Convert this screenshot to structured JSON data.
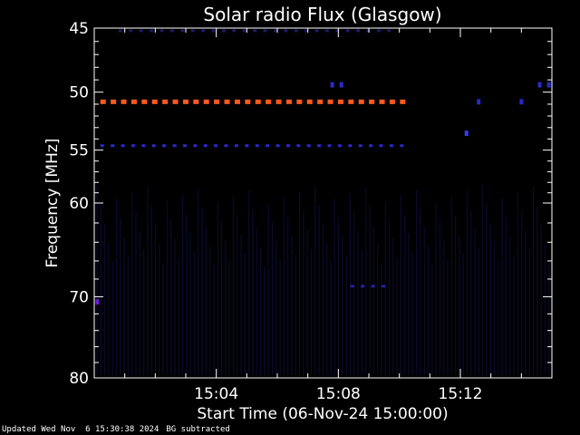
{
  "chart_data": {
    "type": "heatmap",
    "title": "Solar radio Flux (Glasgow)",
    "xlabel": "Start Time (06-Nov-24 15:00:00)",
    "ylabel": "Frequency [MHz]",
    "xlim_minutes": [
      0,
      15.0
    ],
    "ylim_mhz": [
      45,
      80
    ],
    "y_scale": "log",
    "x_ticks": [
      {
        "minute": 4,
        "label": "15:04"
      },
      {
        "minute": 8,
        "label": "15:08"
      },
      {
        "minute": 12,
        "label": "15:12"
      }
    ],
    "y_ticks": [
      {
        "value": 45,
        "label": "45"
      },
      {
        "value": 50,
        "label": "50"
      },
      {
        "value": 55,
        "label": "55"
      },
      {
        "value": 60,
        "label": "60"
      },
      {
        "value": 70,
        "label": "70"
      },
      {
        "value": 80,
        "label": "80"
      }
    ],
    "bands": [
      {
        "name": "50.8 MHz",
        "freq": 50.8,
        "start_min": 0.2,
        "end_min": 10.1,
        "level": "high",
        "color": "#ff5a1e"
      },
      {
        "name": "54.6 MHz",
        "freq": 54.6,
        "start_min": 0.2,
        "end_min": 10.1,
        "level": "low",
        "color": "#2a2acc"
      },
      {
        "name": "45.2 MHz",
        "freq": 45.2,
        "start_min": 0.8,
        "end_min": 9.8,
        "level": "faint",
        "color": "#1a1a66"
      },
      {
        "name": "68.8 MHz",
        "freq": 68.8,
        "start_min": 8.4,
        "end_min": 9.6,
        "level": "low",
        "color": "#2222aa"
      }
    ],
    "spots": [
      {
        "minute": 0.1,
        "freq": 70.6,
        "color": "#6a1ad0"
      },
      {
        "minute": 12.2,
        "freq": 53.5,
        "color": "#3a3aee"
      },
      {
        "minute": 12.6,
        "freq": 50.8,
        "color": "#2a2acc"
      },
      {
        "minute": 14.0,
        "freq": 50.8,
        "color": "#2a2acc"
      },
      {
        "minute": 7.8,
        "freq": 49.4,
        "color": "#2a2acc"
      },
      {
        "minute": 8.1,
        "freq": 49.4,
        "color": "#2a2acc"
      },
      {
        "minute": 14.6,
        "freq": 49.4,
        "color": "#2a2acc"
      },
      {
        "minute": 14.9,
        "freq": 49.4,
        "color": "#2a2acc"
      }
    ],
    "background_color": "#000000",
    "axis_color": "#ffffff"
  },
  "footer": {
    "updated": "Updated Wed Nov  6 15:30:38 2024",
    "note": "BG subtracted"
  }
}
